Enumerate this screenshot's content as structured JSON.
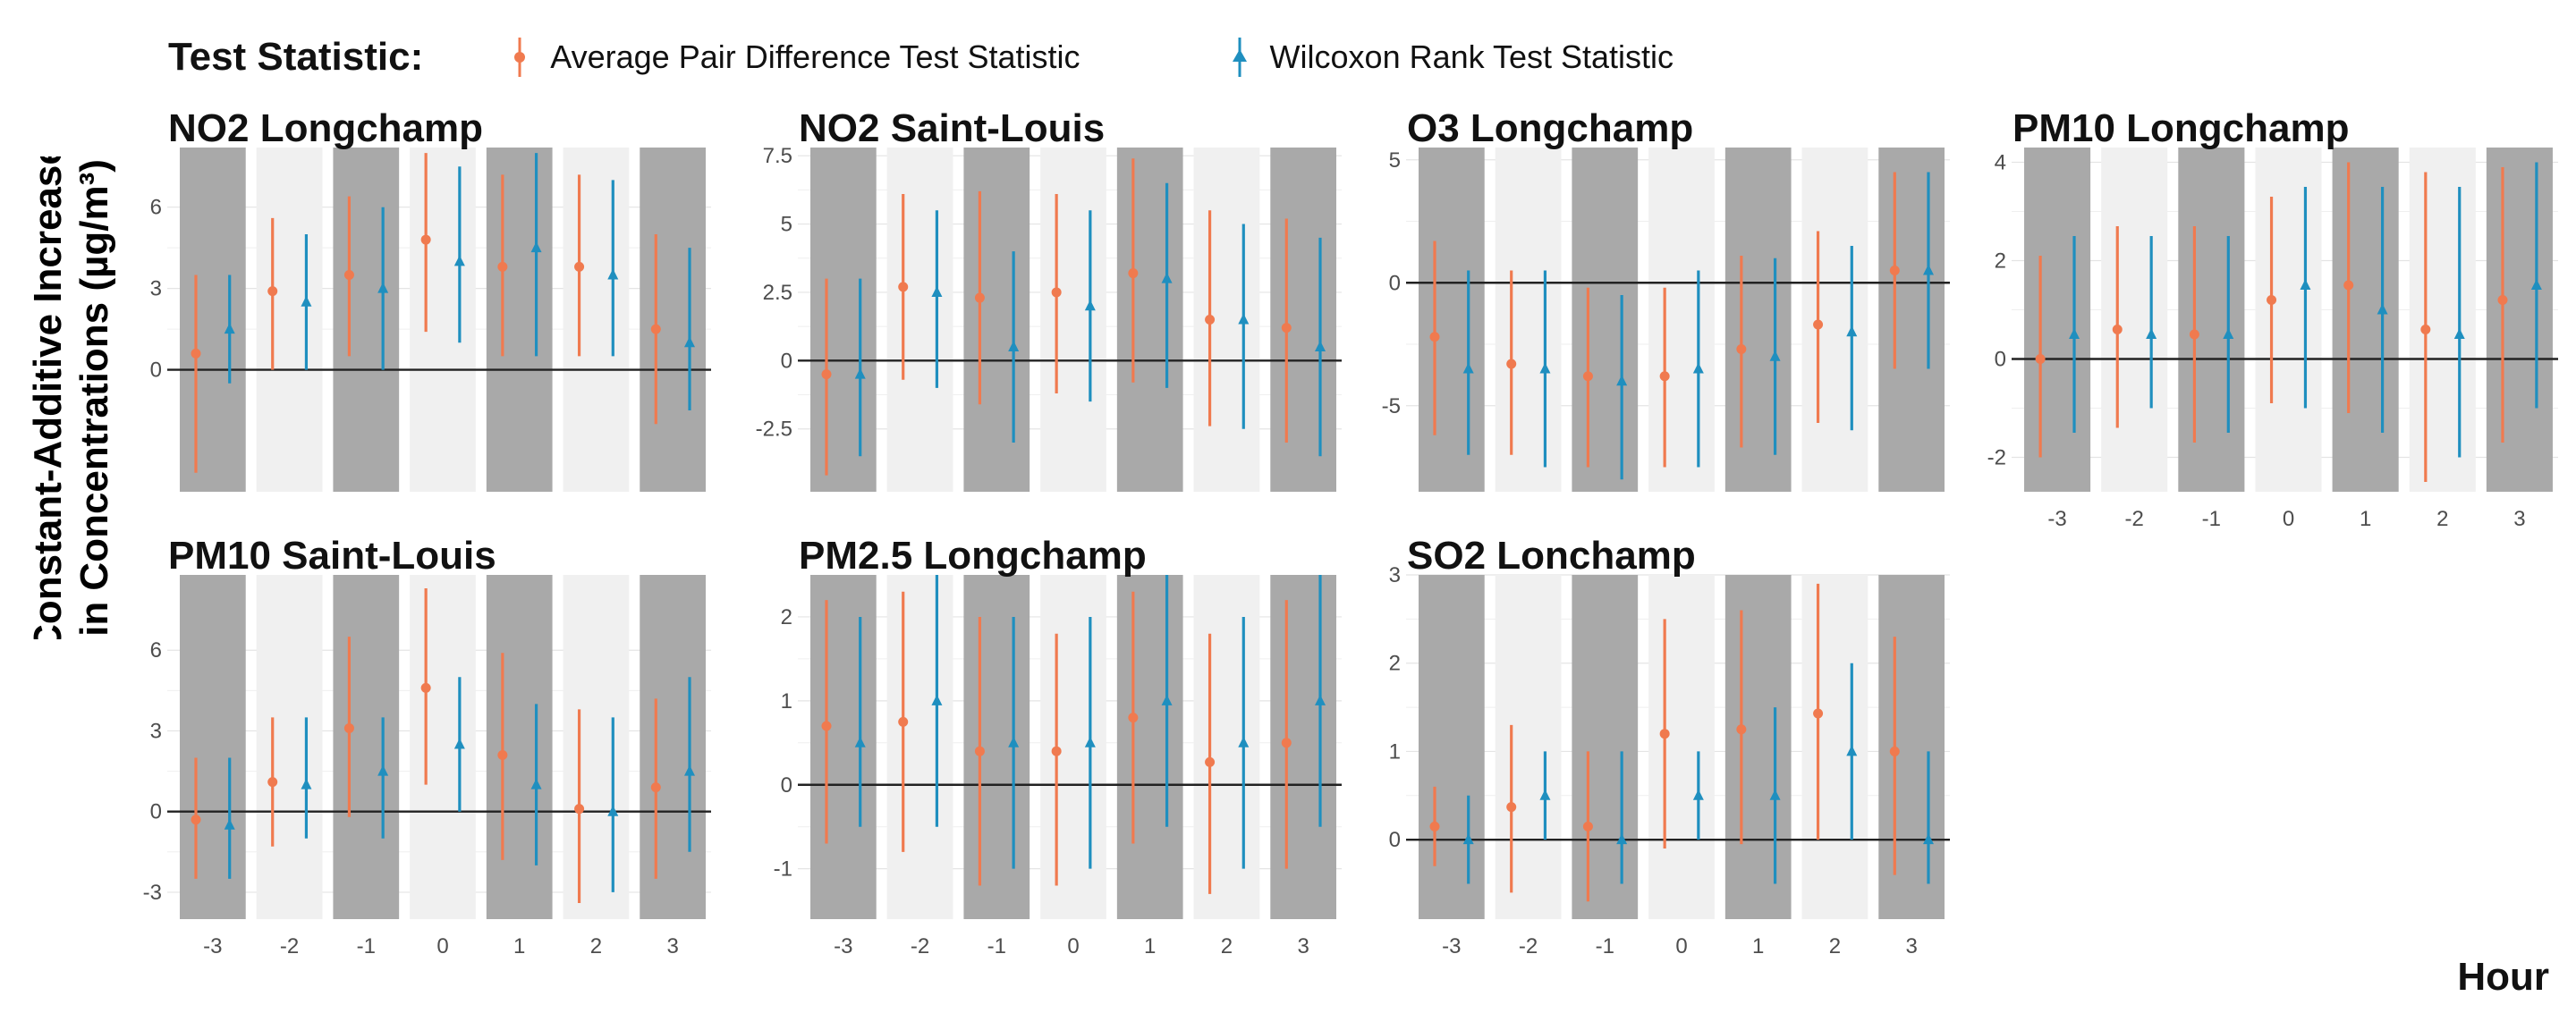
{
  "legend": {
    "title": "Test Statistic:",
    "items": [
      {
        "label": "Average Pair Difference Test Statistic",
        "color": "#f07a4f"
      },
      {
        "label": "Wilcoxon Rank Test Statistic",
        "color": "#1f8fbf"
      }
    ]
  },
  "axes": {
    "ylabel_line1": "Constant-Additive Increase",
    "ylabel_line2": "in Concentrations (µg/m³)",
    "xlabel": "Hour"
  },
  "colors": {
    "dark_band": "#a9a9a9",
    "light_band": "#f0f0f0",
    "average": "#f07a4f",
    "wilcoxon": "#1f8fbf"
  },
  "chart_data": [
    {
      "type": "errorbar",
      "title": "NO2 Longchamp",
      "x": [
        -3,
        -2,
        -1,
        0,
        1,
        2,
        3
      ],
      "ylim": [
        -4.5,
        8.2
      ],
      "yticks": [
        0,
        3,
        6
      ],
      "series": [
        {
          "name": "Average Pair Difference Test Statistic",
          "y": [
            0.6,
            2.9,
            3.5,
            4.8,
            3.8,
            3.8,
            1.5
          ],
          "lo": [
            -3.8,
            0,
            0.5,
            1.4,
            0.5,
            0.5,
            -2
          ],
          "hi": [
            3.5,
            5.6,
            6.4,
            8,
            7.2,
            7.2,
            5
          ]
        },
        {
          "name": "Wilcoxon Rank Test Statistic",
          "y": [
            1.5,
            2.5,
            3,
            4,
            4.5,
            3.5,
            1
          ],
          "lo": [
            -0.5,
            0,
            0,
            1,
            0.5,
            0.5,
            -1.5
          ],
          "hi": [
            3.5,
            5,
            6,
            7.5,
            8,
            7,
            4.5
          ]
        }
      ]
    },
    {
      "type": "errorbar",
      "title": "NO2 Saint-Louis",
      "x": [
        -3,
        -2,
        -1,
        0,
        1,
        2,
        3
      ],
      "ylim": [
        -4.8,
        7.8
      ],
      "yticks": [
        -2.5,
        0,
        2.5,
        5,
        7.5
      ],
      "series": [
        {
          "name": "Average Pair Difference Test Statistic",
          "y": [
            -0.5,
            2.7,
            2.3,
            2.5,
            3.2,
            1.5,
            1.2
          ],
          "lo": [
            -4.2,
            -0.7,
            -1.6,
            -1.2,
            -0.8,
            -2.4,
            -3
          ],
          "hi": [
            3,
            6.1,
            6.2,
            6.1,
            7.4,
            5.5,
            5.2
          ]
        },
        {
          "name": "Wilcoxon Rank Test Statistic",
          "y": [
            -0.5,
            2.5,
            0.5,
            2,
            3,
            1.5,
            0.5
          ],
          "lo": [
            -3.5,
            -1,
            -3,
            -1.5,
            -1,
            -2.5,
            -3.5
          ],
          "hi": [
            3,
            5.5,
            4,
            5.5,
            6.5,
            5,
            4.5
          ]
        }
      ]
    },
    {
      "type": "errorbar",
      "title": "O3 Longchamp",
      "x": [
        -3,
        -2,
        -1,
        0,
        1,
        2,
        3
      ],
      "ylim": [
        -8.5,
        5.5
      ],
      "yticks": [
        -5,
        0,
        5
      ],
      "series": [
        {
          "name": "Average Pair Difference Test Statistic",
          "y": [
            -2.2,
            -3.3,
            -3.8,
            -3.8,
            -2.7,
            -1.7,
            0.5
          ],
          "lo": [
            -6.2,
            -7,
            -7.5,
            -7.5,
            -6.7,
            -5.7,
            -3.5
          ],
          "hi": [
            1.7,
            0.5,
            -0.2,
            -0.2,
            1.1,
            2.1,
            4.5
          ]
        },
        {
          "name": "Wilcoxon Rank Test Statistic",
          "y": [
            -3.5,
            -3.5,
            -4,
            -3.5,
            -3,
            -2,
            0.5
          ],
          "lo": [
            -7,
            -7.5,
            -8,
            -7.5,
            -7,
            -6,
            -3.5
          ],
          "hi": [
            0.5,
            0.5,
            -0.5,
            0.5,
            1,
            1.5,
            4.5
          ]
        }
      ]
    },
    {
      "type": "errorbar",
      "title": "PM10 Longchamp",
      "x": [
        -3,
        -2,
        -1,
        0,
        1,
        2,
        3
      ],
      "ylim": [
        -2.7,
        4.3
      ],
      "yticks": [
        -2,
        0,
        2,
        4
      ],
      "series": [
        {
          "name": "Average Pair Difference Test Statistic",
          "y": [
            0,
            0.6,
            0.5,
            1.2,
            1.5,
            0.6,
            1.2
          ],
          "lo": [
            -2,
            -1.4,
            -1.7,
            -0.9,
            -1.1,
            -2.5,
            -1.7
          ],
          "hi": [
            2.1,
            2.7,
            2.7,
            3.3,
            4,
            3.8,
            3.9
          ]
        },
        {
          "name": "Wilcoxon Rank Test Statistic",
          "y": [
            0.5,
            0.5,
            0.5,
            1.5,
            1,
            0.5,
            1.5
          ],
          "lo": [
            -1.5,
            -1,
            -1.5,
            -1,
            -1.5,
            -2,
            -1
          ],
          "hi": [
            2.5,
            2.5,
            2.5,
            3.5,
            3.5,
            3.5,
            4
          ]
        }
      ]
    },
    {
      "type": "errorbar",
      "title": "PM10 Saint-Louis",
      "x": [
        -3,
        -2,
        -1,
        0,
        1,
        2,
        3
      ],
      "ylim": [
        -4.0,
        8.8
      ],
      "yticks": [
        -3,
        0,
        3,
        6
      ],
      "series": [
        {
          "name": "Average Pair Difference Test Statistic",
          "y": [
            -0.3,
            1.1,
            3.1,
            4.6,
            2.1,
            0.1,
            0.9
          ],
          "lo": [
            -2.5,
            -1.3,
            -0.2,
            1,
            -1.8,
            -3.4,
            -2.5
          ],
          "hi": [
            2,
            3.5,
            6.5,
            8.3,
            5.9,
            3.8,
            4.2
          ]
        },
        {
          "name": "Wilcoxon Rank Test Statistic",
          "y": [
            -0.5,
            1,
            1.5,
            2.5,
            1,
            0,
            1.5
          ],
          "lo": [
            -2.5,
            -1,
            -1,
            0,
            -2,
            -3,
            -1.5
          ],
          "hi": [
            2,
            3.5,
            3.5,
            5,
            4,
            3.5,
            5
          ]
        }
      ]
    },
    {
      "type": "errorbar",
      "title": "PM2.5 Longchamp",
      "x": [
        -3,
        -2,
        -1,
        0,
        1,
        2,
        3
      ],
      "ylim": [
        -1.6,
        2.5
      ],
      "yticks": [
        -1,
        0,
        1,
        2
      ],
      "series": [
        {
          "name": "Average Pair Difference Test Statistic",
          "y": [
            0.7,
            0.75,
            0.4,
            0.4,
            0.8,
            0.27,
            0.5
          ],
          "lo": [
            -0.7,
            -0.8,
            -1.2,
            -1.2,
            -0.7,
            -1.3,
            -1
          ],
          "hi": [
            2.2,
            2.3,
            2,
            1.8,
            2.3,
            1.8,
            2.2
          ]
        },
        {
          "name": "Wilcoxon Rank Test Statistic",
          "y": [
            0.5,
            1,
            0.5,
            0.5,
            1,
            0.5,
            1
          ],
          "lo": [
            -0.5,
            -0.5,
            -1,
            -1,
            -0.5,
            -1,
            -0.5
          ],
          "hi": [
            2,
            2.5,
            2,
            2,
            2.5,
            2,
            2.5
          ]
        }
      ]
    },
    {
      "type": "errorbar",
      "title": "SO2 Lonchamp",
      "x": [
        -3,
        -2,
        -1,
        0,
        1,
        2,
        3
      ],
      "ylim": [
        -0.9,
        3.0
      ],
      "yticks": [
        0,
        1,
        2,
        3
      ],
      "series": [
        {
          "name": "Average Pair Difference Test Statistic",
          "y": [
            0.15,
            0.37,
            0.15,
            1.2,
            1.25,
            1.43,
            1
          ],
          "lo": [
            -0.3,
            -0.6,
            -0.7,
            -0.1,
            -0.05,
            0,
            -0.4
          ],
          "hi": [
            0.6,
            1.3,
            1,
            2.5,
            2.6,
            2.9,
            2.3
          ]
        },
        {
          "name": "Wilcoxon Rank Test Statistic",
          "y": [
            0,
            0.5,
            0,
            0.5,
            0.5,
            1,
            0
          ],
          "lo": [
            -0.5,
            0,
            -0.5,
            0,
            -0.5,
            0,
            -0.5
          ],
          "hi": [
            0.5,
            1,
            1,
            1,
            1.5,
            2,
            1
          ]
        }
      ]
    }
  ]
}
